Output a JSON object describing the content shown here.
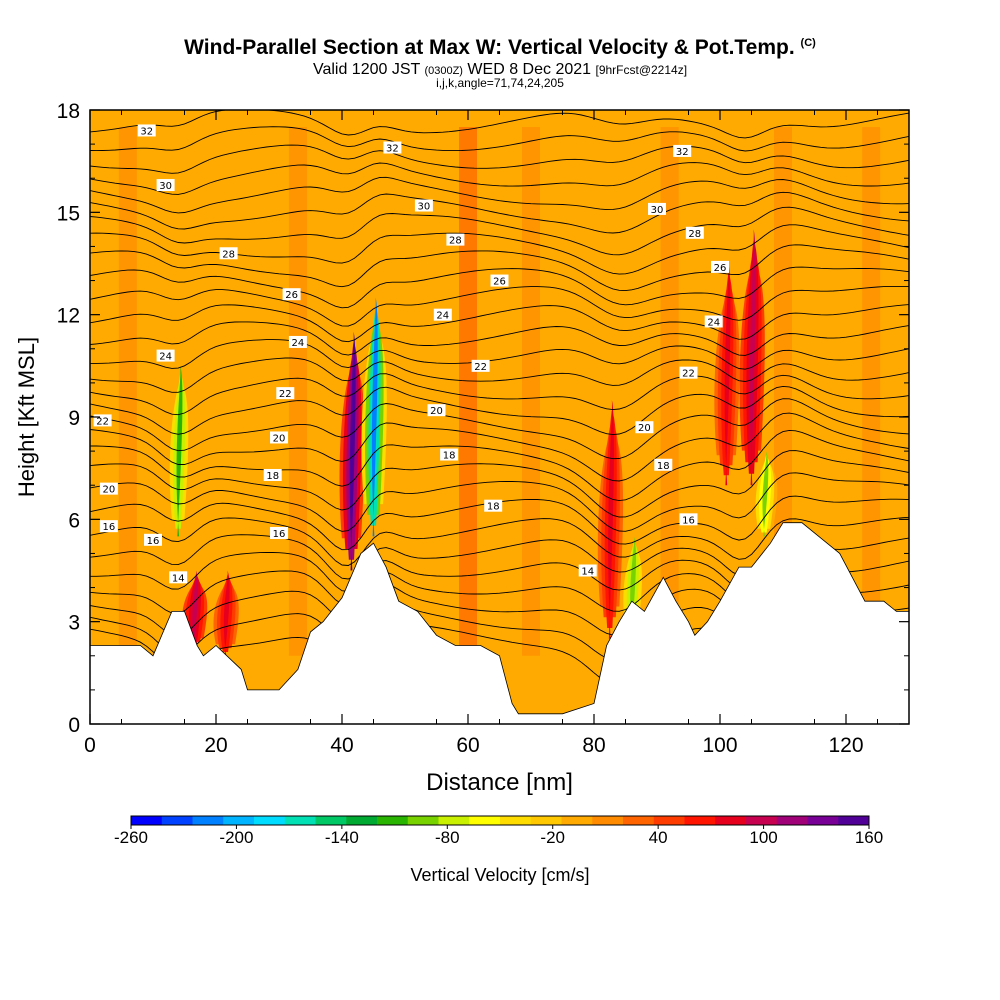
{
  "title": {
    "main": "Wind-Parallel Section at Max W: Vertical Velocity & Pot.Temp.",
    "copyright": "(C)",
    "valid_prefix": "Valid 1200 JST",
    "valid_utc": "(0300Z)",
    "valid_date": "WED 8 Dec 2021",
    "forecast": "[9hrFcst@2214z]",
    "params": "i,j,k,angle=71,74,24,205"
  },
  "chart_data": {
    "type": "heatmap",
    "xlabel": "Distance [nm]",
    "ylabel": "Height [Kft MSL]",
    "xlim": [
      0,
      130
    ],
    "ylim": [
      0,
      18
    ],
    "xticks": [
      0,
      20,
      40,
      60,
      80,
      100,
      120
    ],
    "yticks": [
      0,
      3,
      6,
      9,
      12,
      15,
      18
    ],
    "colorbar": {
      "label": "Vertical Velocity [cm/s]",
      "ticks": [
        -260,
        -200,
        -140,
        -80,
        -20,
        40,
        100,
        160
      ],
      "colors": [
        "#0000ff",
        "#0040ff",
        "#0080ff",
        "#00b4ff",
        "#00dcff",
        "#00e0b4",
        "#00c864",
        "#00aa32",
        "#28b400",
        "#78d200",
        "#c8f000",
        "#ffff00",
        "#ffdc00",
        "#ffc800",
        "#ffaa00",
        "#ff8c00",
        "#ff6400",
        "#ff3c00",
        "#ff1400",
        "#e6001e",
        "#c80050",
        "#a00078",
        "#780096",
        "#500096"
      ]
    },
    "terrain_kft": [
      [
        0,
        2.3
      ],
      [
        8,
        2.3
      ],
      [
        10,
        2.0
      ],
      [
        13,
        3.3
      ],
      [
        15,
        3.3
      ],
      [
        17,
        2.3
      ],
      [
        18,
        2.0
      ],
      [
        20,
        2.3
      ],
      [
        24,
        1.6
      ],
      [
        25,
        1.0
      ],
      [
        30,
        1.0
      ],
      [
        33,
        1.6
      ],
      [
        35,
        2.7
      ],
      [
        37,
        3.0
      ],
      [
        40,
        3.7
      ],
      [
        43,
        5.0
      ],
      [
        45,
        5.3
      ],
      [
        47,
        4.6
      ],
      [
        49,
        3.6
      ],
      [
        52,
        3.3
      ],
      [
        55,
        2.6
      ],
      [
        58,
        2.3
      ],
      [
        62,
        2.3
      ],
      [
        65,
        2.0
      ],
      [
        67,
        0.6
      ],
      [
        68,
        0.3
      ],
      [
        75,
        0.3
      ],
      [
        80,
        0.6
      ],
      [
        82,
        2.3
      ],
      [
        84,
        3.0
      ],
      [
        86,
        3.6
      ],
      [
        88,
        3.3
      ],
      [
        91,
        4.3
      ],
      [
        93,
        3.6
      ],
      [
        95,
        3.0
      ],
      [
        96,
        2.6
      ],
      [
        98,
        3.0
      ],
      [
        100,
        3.6
      ],
      [
        103,
        4.6
      ],
      [
        105,
        4.6
      ],
      [
        108,
        5.3
      ],
      [
        110,
        5.9
      ],
      [
        113,
        5.9
      ],
      [
        117,
        5.3
      ],
      [
        119,
        5.0
      ],
      [
        121,
        4.3
      ],
      [
        123,
        3.6
      ],
      [
        126,
        3.6
      ],
      [
        128,
        3.3
      ],
      [
        130,
        3.3
      ]
    ],
    "theta_contour_labels": [
      "14",
      "16",
      "18",
      "20",
      "22",
      "24",
      "26",
      "28",
      "30",
      "32"
    ],
    "w_cells": [
      {
        "x": 14,
        "zmin": 5.5,
        "zmax": 10.5,
        "w": -120
      },
      {
        "x": 16.5,
        "zmin": 2.2,
        "zmax": 4.5,
        "w": 100
      },
      {
        "x": 21.5,
        "zmin": 2.0,
        "zmax": 4.5,
        "w": 80
      },
      {
        "x": 41.5,
        "zmin": 4.5,
        "zmax": 11.5,
        "w": 150
      },
      {
        "x": 45,
        "zmin": 5.5,
        "zmax": 12.5,
        "w": -220
      },
      {
        "x": 82.5,
        "zmin": 2.5,
        "zmax": 9.5,
        "w": 80
      },
      {
        "x": 86,
        "zmin": 2.5,
        "zmax": 5.5,
        "w": -100
      },
      {
        "x": 101,
        "zmin": 7.0,
        "zmax": 13.5,
        "w": 80
      },
      {
        "x": 105,
        "zmin": 7.0,
        "zmax": 14.5,
        "w": 100
      },
      {
        "x": 107,
        "zmin": 5.5,
        "zmax": 8.0,
        "w": -90
      }
    ]
  }
}
